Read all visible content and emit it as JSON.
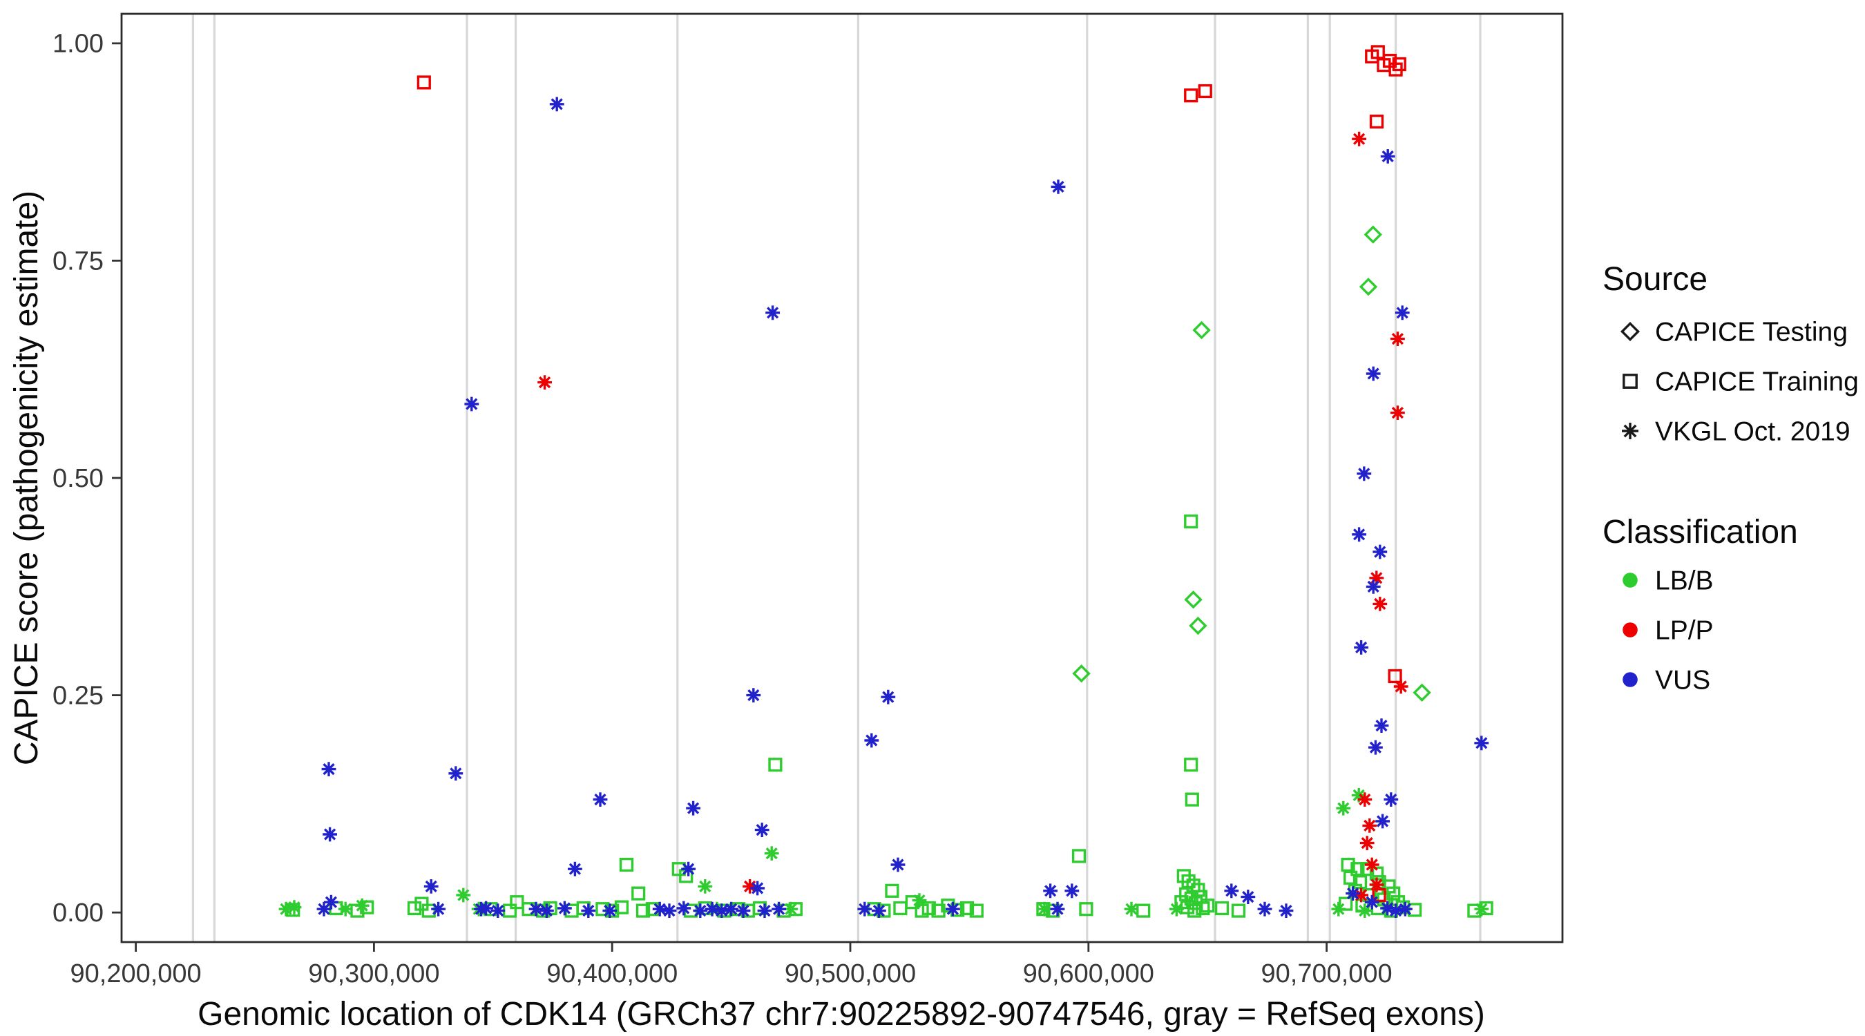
{
  "chart_data": {
    "type": "scatter",
    "title": "",
    "xlabel": "Genomic location of CDK14 (GRCh37 chr7:90225892-90747546, gray = RefSeq exons)",
    "ylabel": "CAPICE score (pathogenicity estimate)",
    "xlim": [
      90194000,
      90799000
    ],
    "ylim": [
      -0.034,
      1.034
    ],
    "grid": false,
    "legend_position": "right",
    "x_ticks": [
      {
        "value": 90200000,
        "label": "90,200,000"
      },
      {
        "value": 90300000,
        "label": "90,300,000"
      },
      {
        "value": 90400000,
        "label": "90,400,000"
      },
      {
        "value": 90500000,
        "label": "90,500,000"
      },
      {
        "value": 90600000,
        "label": "90,600,000"
      },
      {
        "value": 90700000,
        "label": "90,700,000"
      }
    ],
    "y_ticks": [
      {
        "value": 0.0,
        "label": "0.00"
      },
      {
        "value": 0.25,
        "label": "0.25"
      },
      {
        "value": 0.5,
        "label": "0.50"
      },
      {
        "value": 0.75,
        "label": "0.75"
      },
      {
        "value": 1.0,
        "label": "1.00"
      }
    ],
    "exon_color": "#d7d7d7",
    "exon_positions": [
      90224000,
      90233000,
      90339000,
      90359500,
      90427400,
      90503300,
      90599400,
      90653100,
      90692100,
      90701300,
      90729000,
      90764500
    ],
    "legend": {
      "source_title": "Source",
      "source_items": [
        {
          "label": "CAPICE Testing",
          "shape": "diamond"
        },
        {
          "label": "CAPICE Training",
          "shape": "square"
        },
        {
          "label": "VKGL Oct. 2019",
          "shape": "asterisk"
        }
      ],
      "classification_title": "Classification",
      "classification_items": [
        {
          "label": "LB/B",
          "color": "#2ecc2e"
        },
        {
          "label": "LP/P",
          "color": "#ee0000"
        },
        {
          "label": "VUS",
          "color": "#2222cc"
        }
      ]
    },
    "series": [
      {
        "classification": "LB/B",
        "source": "CAPICE Testing",
        "shape": "diamond",
        "color": "#2ecc2e",
        "points": [
          [
            90597000,
            0.275
          ],
          [
            90647500,
            0.67
          ],
          [
            90644000,
            0.36
          ],
          [
            90646000,
            0.33
          ],
          [
            90719500,
            0.78
          ],
          [
            90717500,
            0.72
          ],
          [
            90740000,
            0.253
          ]
        ]
      },
      {
        "classification": "LB/B",
        "source": "CAPICE Training",
        "shape": "square",
        "color": "#2ecc2e",
        "points": [
          [
            90266000,
            0.003
          ],
          [
            90284000,
            0.005
          ],
          [
            90293000,
            0.002
          ],
          [
            90297000,
            0.006
          ],
          [
            90317000,
            0.005
          ],
          [
            90320000,
            0.01
          ],
          [
            90323000,
            0.002
          ],
          [
            90349000,
            0.004
          ],
          [
            90357000,
            0.002
          ],
          [
            90360000,
            0.012
          ],
          [
            90365000,
            0.004
          ],
          [
            90371000,
            0.002
          ],
          [
            90374000,
            0.005
          ],
          [
            90383000,
            0.002
          ],
          [
            90388000,
            0.005
          ],
          [
            90396000,
            0.004
          ],
          [
            90400000,
            0.002
          ],
          [
            90404000,
            0.006
          ],
          [
            90406000,
            0.055
          ],
          [
            90411000,
            0.022
          ],
          [
            90413000,
            0.002
          ],
          [
            90417000,
            0.004
          ],
          [
            90428000,
            0.05
          ],
          [
            90431000,
            0.042
          ],
          [
            90433000,
            0.002
          ],
          [
            90439000,
            0.005
          ],
          [
            90447000,
            0.002
          ],
          [
            90453000,
            0.004
          ],
          [
            90457000,
            0.002
          ],
          [
            90462000,
            0.005
          ],
          [
            90468500,
            0.17
          ],
          [
            90472000,
            0.002
          ],
          [
            90477000,
            0.004
          ],
          [
            90510000,
            0.004
          ],
          [
            90514000,
            0.002
          ],
          [
            90517500,
            0.025
          ],
          [
            90521000,
            0.005
          ],
          [
            90526000,
            0.012
          ],
          [
            90530000,
            0.002
          ],
          [
            90533000,
            0.005
          ],
          [
            90537000,
            0.002
          ],
          [
            90541000,
            0.008
          ],
          [
            90545000,
            0.003
          ],
          [
            90549000,
            0.005
          ],
          [
            90553000,
            0.002
          ],
          [
            90581000,
            0.004
          ],
          [
            90585000,
            0.002
          ],
          [
            90596000,
            0.065
          ],
          [
            90599000,
            0.004
          ],
          [
            90623000,
            0.002
          ],
          [
            90643000,
            0.45
          ],
          [
            90643000,
            0.17
          ],
          [
            90643500,
            0.13
          ],
          [
            90640000,
            0.042
          ],
          [
            90642000,
            0.036
          ],
          [
            90644000,
            0.031
          ],
          [
            90646000,
            0.026
          ],
          [
            90641000,
            0.021
          ],
          [
            90643200,
            0.016
          ],
          [
            90645000,
            0.011
          ],
          [
            90641500,
            0.006
          ],
          [
            90644500,
            0.002
          ],
          [
            90648000,
            0.005
          ],
          [
            90639000,
            0.012
          ],
          [
            90647000,
            0.018
          ],
          [
            90650000,
            0.008
          ],
          [
            90656000,
            0.005
          ],
          [
            90663000,
            0.002
          ],
          [
            90709000,
            0.055
          ],
          [
            90713000,
            0.05
          ],
          [
            90717000,
            0.05
          ],
          [
            90721000,
            0.045
          ],
          [
            90710000,
            0.04
          ],
          [
            90714000,
            0.035
          ],
          [
            90722000,
            0.035
          ],
          [
            90726000,
            0.03
          ],
          [
            90712000,
            0.025
          ],
          [
            90718000,
            0.02
          ],
          [
            90728000,
            0.022
          ],
          [
            90724000,
            0.015
          ],
          [
            90708000,
            0.01
          ],
          [
            90715000,
            0.008
          ],
          [
            90721500,
            0.005
          ],
          [
            90727000,
            0.002
          ],
          [
            90730000,
            0.012
          ],
          [
            90732000,
            0.006
          ],
          [
            90737000,
            0.003
          ],
          [
            90762000,
            0.002
          ],
          [
            90767000,
            0.005
          ]
        ]
      },
      {
        "classification": "LB/B",
        "source": "VKGL Oct. 2019",
        "shape": "asterisk",
        "color": "#2ecc2e",
        "points": [
          [
            90263000,
            0.004
          ],
          [
            90266500,
            0.006
          ],
          [
            90288000,
            0.004
          ],
          [
            90295000,
            0.008
          ],
          [
            90337500,
            0.02
          ],
          [
            90344000,
            0.004
          ],
          [
            90439000,
            0.03
          ],
          [
            90444000,
            0.004
          ],
          [
            90467000,
            0.068
          ],
          [
            90475000,
            0.004
          ],
          [
            90529000,
            0.014
          ],
          [
            90581500,
            0.004
          ],
          [
            90618000,
            0.004
          ],
          [
            90637000,
            0.004
          ],
          [
            90707000,
            0.12
          ],
          [
            90713500,
            0.135
          ],
          [
            90705000,
            0.004
          ],
          [
            90716000,
            0.002
          ],
          [
            90765000,
            0.004
          ]
        ]
      },
      {
        "classification": "LP/P",
        "source": "CAPICE Training",
        "shape": "square",
        "color": "#ee0000",
        "points": [
          [
            90321000,
            0.955
          ],
          [
            90643000,
            0.94
          ],
          [
            90649000,
            0.945
          ],
          [
            90719000,
            0.985
          ],
          [
            90721500,
            0.99
          ],
          [
            90724000,
            0.975
          ],
          [
            90726500,
            0.98
          ],
          [
            90729000,
            0.97
          ],
          [
            90730500,
            0.976
          ],
          [
            90721000,
            0.91
          ],
          [
            90728700,
            0.272
          ],
          [
            90722000,
            0.02
          ]
        ]
      },
      {
        "classification": "LP/P",
        "source": "VKGL Oct. 2019",
        "shape": "asterisk",
        "color": "#ee0000",
        "points": [
          [
            90371700,
            0.61
          ],
          [
            90457800,
            0.03
          ],
          [
            90713600,
            0.89
          ],
          [
            90729800,
            0.66
          ],
          [
            90729800,
            0.575
          ],
          [
            90720900,
            0.385
          ],
          [
            90722400,
            0.355
          ],
          [
            90731200,
            0.26
          ],
          [
            90716000,
            0.13
          ],
          [
            90718000,
            0.1
          ],
          [
            90717000,
            0.08
          ],
          [
            90719000,
            0.055
          ],
          [
            90721000,
            0.032
          ],
          [
            90714500,
            0.02
          ]
        ]
      },
      {
        "classification": "VUS",
        "source": "VKGL Oct. 2019",
        "shape": "asterisk",
        "color": "#2222cc",
        "points": [
          [
            90281000,
            0.165
          ],
          [
            90281500,
            0.09
          ],
          [
            90282000,
            0.012
          ],
          [
            90279000,
            0.004
          ],
          [
            90324000,
            0.03
          ],
          [
            90327000,
            0.004
          ],
          [
            90334300,
            0.16
          ],
          [
            90341000,
            0.585
          ],
          [
            90345000,
            0.004
          ],
          [
            90347000,
            0.005
          ],
          [
            90352000,
            0.002
          ],
          [
            90368000,
            0.004
          ],
          [
            90372500,
            0.002
          ],
          [
            90376800,
            0.93
          ],
          [
            90380000,
            0.005
          ],
          [
            90384400,
            0.05
          ],
          [
            90390000,
            0.002
          ],
          [
            90395000,
            0.13
          ],
          [
            90399000,
            0.002
          ],
          [
            90420000,
            0.004
          ],
          [
            90424000,
            0.002
          ],
          [
            90430000,
            0.005
          ],
          [
            90434000,
            0.12
          ],
          [
            90432000,
            0.05
          ],
          [
            90437000,
            0.002
          ],
          [
            90442000,
            0.004
          ],
          [
            90446000,
            0.002
          ],
          [
            90450000,
            0.004
          ],
          [
            90455000,
            0.002
          ],
          [
            90459300,
            0.25
          ],
          [
            90462900,
            0.095
          ],
          [
            90461000,
            0.028
          ],
          [
            90467400,
            0.69
          ],
          [
            90464000,
            0.002
          ],
          [
            90470000,
            0.004
          ],
          [
            90506000,
            0.004
          ],
          [
            90508900,
            0.198
          ],
          [
            90512000,
            0.002
          ],
          [
            90515900,
            0.248
          ],
          [
            90520000,
            0.055
          ],
          [
            90543000,
            0.004
          ],
          [
            90584000,
            0.025
          ],
          [
            90587000,
            0.004
          ],
          [
            90587300,
            0.835
          ],
          [
            90593000,
            0.025
          ],
          [
            90660000,
            0.025
          ],
          [
            90667000,
            0.018
          ],
          [
            90674000,
            0.004
          ],
          [
            90683000,
            0.002
          ],
          [
            90725700,
            0.87
          ],
          [
            90731800,
            0.69
          ],
          [
            90719600,
            0.62
          ],
          [
            90715700,
            0.505
          ],
          [
            90713600,
            0.435
          ],
          [
            90722400,
            0.415
          ],
          [
            90719600,
            0.375
          ],
          [
            90714500,
            0.305
          ],
          [
            90723000,
            0.215
          ],
          [
            90720500,
            0.19
          ],
          [
            90727000,
            0.13
          ],
          [
            90723500,
            0.105
          ],
          [
            90711000,
            0.022
          ],
          [
            90719000,
            0.012
          ],
          [
            90725500,
            0.005
          ],
          [
            90729000,
            0.002
          ],
          [
            90733000,
            0.004
          ],
          [
            90765000,
            0.195
          ]
        ]
      }
    ]
  }
}
